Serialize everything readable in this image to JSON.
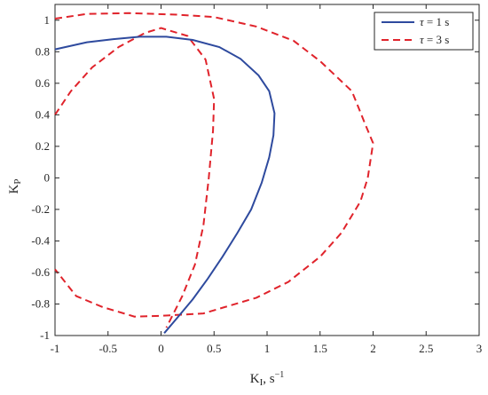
{
  "chart_data": {
    "type": "line",
    "xlabel_main": "K",
    "xlabel_sub": "I",
    "xlabel_unit": ", s",
    "xlabel_exp": "−1",
    "ylabel_main": "K",
    "ylabel_sub": "P",
    "xlim": [
      -1,
      3
    ],
    "ylim": [
      -1,
      1.1
    ],
    "xticks": [
      -1,
      -0.5,
      0,
      0.5,
      1,
      1.5,
      2,
      2.5,
      3
    ],
    "xtick_labels": [
      "-1",
      "-0.5",
      "0",
      "0.5",
      "1",
      "1.5",
      "2",
      "2.5",
      "3"
    ],
    "yticks": [
      -1,
      -0.8,
      -0.6,
      -0.4,
      -0.2,
      0,
      0.2,
      0.4,
      0.6,
      0.8,
      1
    ],
    "ytick_labels": [
      "-1",
      "-0.8",
      "-0.6",
      "-0.4",
      "-0.2",
      "0",
      "0.2",
      "0.4",
      "0.6",
      "0.8",
      "1"
    ],
    "grid": false,
    "legend_position": "top-right",
    "series": [
      {
        "name": "τ = 1 s",
        "legend_greek": "τ",
        "legend_rest": " = 1 s",
        "color": "#2e4a9e",
        "dash": "solid",
        "points": [
          [
            -1.0,
            0.815
          ],
          [
            -0.7,
            0.86
          ],
          [
            -0.45,
            0.88
          ],
          [
            -0.2,
            0.895
          ],
          [
            0.05,
            0.895
          ],
          [
            0.3,
            0.875
          ],
          [
            0.55,
            0.83
          ],
          [
            0.75,
            0.755
          ],
          [
            0.92,
            0.65
          ],
          [
            1.02,
            0.55
          ],
          [
            1.07,
            0.41
          ],
          [
            1.06,
            0.27
          ],
          [
            1.02,
            0.13
          ],
          [
            0.95,
            -0.03
          ],
          [
            0.85,
            -0.2
          ],
          [
            0.72,
            -0.35
          ],
          [
            0.58,
            -0.5
          ],
          [
            0.44,
            -0.64
          ],
          [
            0.3,
            -0.77
          ],
          [
            0.15,
            -0.89
          ],
          [
            0.03,
            -0.985
          ]
        ]
      },
      {
        "name": "τ = 3 s",
        "legend_greek": "τ",
        "legend_rest": " = 3 s",
        "color": "#e0232b",
        "dash": "dashed",
        "points_outer": [
          [
            -1.0,
            0.4
          ],
          [
            -0.85,
            0.55
          ],
          [
            -0.65,
            0.7
          ],
          [
            -0.4,
            0.83
          ],
          [
            -0.15,
            0.92
          ],
          [
            0.0,
            0.95
          ],
          [
            0.25,
            0.9
          ],
          [
            0.42,
            0.75
          ],
          [
            0.5,
            0.5
          ],
          [
            0.49,
            0.3
          ],
          [
            0.45,
            0.0
          ],
          [
            0.4,
            -0.3
          ],
          [
            0.32,
            -0.55
          ],
          [
            0.2,
            -0.75
          ],
          [
            0.05,
            -0.95
          ]
        ],
        "points_loop": [
          [
            -1.0,
            1.01
          ],
          [
            -0.7,
            1.04
          ],
          [
            -0.3,
            1.045
          ],
          [
            0.15,
            1.035
          ],
          [
            0.5,
            1.02
          ],
          [
            0.9,
            0.96
          ],
          [
            1.25,
            0.87
          ],
          [
            1.5,
            0.74
          ],
          [
            1.8,
            0.55
          ],
          [
            1.92,
            0.35
          ],
          [
            2.0,
            0.22
          ],
          [
            1.95,
            0.0
          ],
          [
            1.88,
            -0.15
          ],
          [
            1.7,
            -0.35
          ],
          [
            1.5,
            -0.5
          ],
          [
            1.2,
            -0.66
          ],
          [
            0.9,
            -0.76
          ],
          [
            0.4,
            -0.86
          ],
          [
            0.0,
            -0.875
          ],
          [
            -0.25,
            -0.88
          ],
          [
            -0.55,
            -0.82
          ],
          [
            -0.8,
            -0.75
          ],
          [
            -1.0,
            -0.58
          ]
        ]
      }
    ]
  }
}
